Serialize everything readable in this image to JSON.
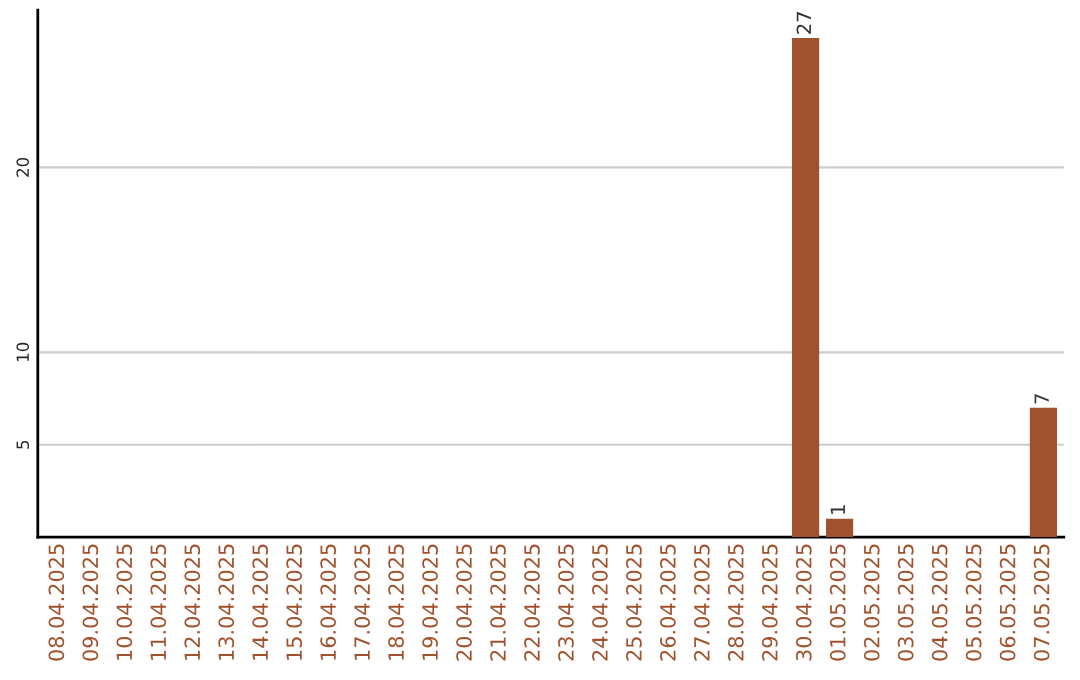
{
  "chart_data": {
    "type": "bar",
    "categories": [
      "08.04.2025",
      "09.04.2025",
      "10.04.2025",
      "11.04.2025",
      "12.04.2025",
      "13.04.2025",
      "14.04.2025",
      "15.04.2025",
      "16.04.2025",
      "17.04.2025",
      "18.04.2025",
      "19.04.2025",
      "20.04.2025",
      "21.04.2025",
      "22.04.2025",
      "23.04.2025",
      "24.04.2025",
      "25.04.2025",
      "26.04.2025",
      "27.04.2025",
      "28.04.2025",
      "29.04.2025",
      "30.04.2025",
      "01.05.2025",
      "02.05.2025",
      "03.05.2025",
      "04.05.2025",
      "05.05.2025",
      "06.05.2025",
      "07.05.2025"
    ],
    "values": [
      0,
      0,
      0,
      0,
      0,
      0,
      0,
      0,
      0,
      0,
      0,
      0,
      0,
      0,
      0,
      0,
      0,
      0,
      0,
      0,
      0,
      0,
      27,
      1,
      0,
      0,
      0,
      0,
      0,
      7
    ],
    "value_labels": [
      null,
      null,
      null,
      null,
      null,
      null,
      null,
      null,
      null,
      null,
      null,
      null,
      null,
      null,
      null,
      null,
      null,
      null,
      null,
      null,
      null,
      null,
      "27",
      "1",
      null,
      null,
      null,
      null,
      null,
      "7"
    ],
    "color": "#a0522d",
    "ylim": [
      0,
      28.5
    ],
    "yticks": [
      5,
      10,
      20
    ],
    "grid": "y"
  }
}
